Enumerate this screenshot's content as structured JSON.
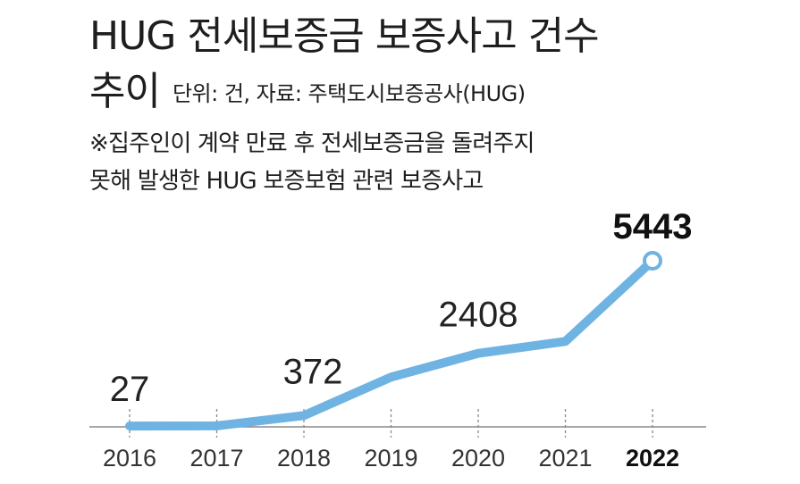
{
  "header": {
    "title_line1": "HUG 전세보증금 보증사고 건수",
    "title_line2": "추이",
    "meta": "단위: 건, 자료: 주택도시보증공사(HUG)",
    "note_line1": "※집주인이 계약 만료 후 전세보증금을 돌려주지",
    "note_line2": "못해 발생한 HUG 보증보험 관련 보증사고"
  },
  "colors": {
    "line": "#6fb3e2",
    "axis": "#888888",
    "marker_fill": "#ffffff"
  },
  "chart_data": {
    "type": "line",
    "title": "HUG 전세보증금 보증사고 건수 추이",
    "unit": "건",
    "source": "주택도시보증공사(HUG)",
    "x": [
      "2016",
      "2017",
      "2018",
      "2019",
      "2020",
      "2021",
      "2022"
    ],
    "values": [
      27,
      33,
      372,
      1630,
      2408,
      2799,
      5443
    ],
    "labeled": {
      "2016": "27",
      "2018": "372",
      "2020": "2408",
      "2022": "5443"
    },
    "highlight": "2022",
    "ylim": [
      0,
      5443
    ],
    "grid": false,
    "legend": "none"
  }
}
